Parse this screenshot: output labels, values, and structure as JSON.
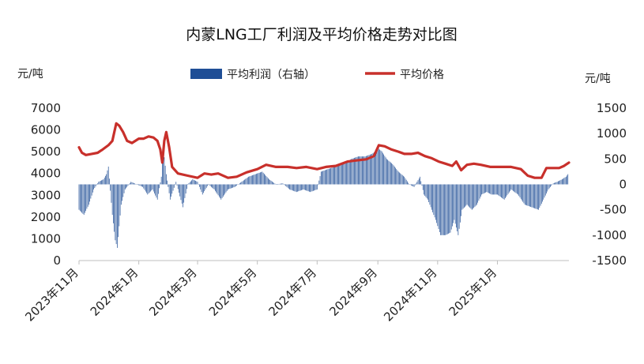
{
  "chart_data": {
    "type": "bar+line",
    "title": "内蒙LNG工厂利润及平均价格走势对比图",
    "left_unit": "元/吨",
    "right_unit": "元/吨",
    "left_axis": {
      "min": 0,
      "max": 7000,
      "ticks": [
        0,
        1000,
        2000,
        3000,
        4000,
        5000,
        6000,
        7000
      ]
    },
    "right_axis": {
      "min": -1500,
      "max": 1500,
      "ticks": [
        -1500,
        -1000,
        -500,
        0,
        500,
        1000,
        1500
      ]
    },
    "x_start": "2023-11-01",
    "x_end": "2025-03-15",
    "x_ticks": [
      {
        "date": "2023-11-01",
        "label": "2023年11月"
      },
      {
        "date": "2024-01-01",
        "label": "2024年1月"
      },
      {
        "date": "2024-03-01",
        "label": "2024年3月"
      },
      {
        "date": "2024-05-01",
        "label": "2024年5月"
      },
      {
        "date": "2024-07-01",
        "label": "2024年7月"
      },
      {
        "date": "2024-09-01",
        "label": "2024年9月"
      },
      {
        "date": "2024-11-01",
        "label": "2024年11月"
      },
      {
        "date": "2025-01-01",
        "label": "2025年1月"
      }
    ],
    "legend": {
      "position": "top",
      "items": [
        "平均利润（右轴）",
        "平均价格"
      ]
    },
    "series": [
      {
        "name": "平均利润（右轴）",
        "kind": "bar",
        "axis": "right",
        "color": "#1F4E96",
        "points": [
          [
            "2023-11-01",
            -500
          ],
          [
            "2023-11-06",
            -600
          ],
          [
            "2023-11-11",
            -400
          ],
          [
            "2023-11-16",
            -100
          ],
          [
            "2023-11-21",
            50
          ],
          [
            "2023-11-26",
            100
          ],
          [
            "2023-11-29",
            200
          ],
          [
            "2023-12-01",
            350
          ],
          [
            "2023-12-05",
            -600
          ],
          [
            "2023-12-08",
            -1100
          ],
          [
            "2023-12-10",
            -1250
          ],
          [
            "2023-12-14",
            -400
          ],
          [
            "2023-12-18",
            -100
          ],
          [
            "2023-12-24",
            50
          ],
          [
            "2023-12-30",
            0
          ],
          [
            "2024-01-05",
            -50
          ],
          [
            "2024-01-10",
            -200
          ],
          [
            "2024-01-15",
            -100
          ],
          [
            "2024-01-20",
            -300
          ],
          [
            "2024-01-24",
            150
          ],
          [
            "2024-01-26",
            700
          ],
          [
            "2024-01-29",
            200
          ],
          [
            "2024-02-02",
            -300
          ],
          [
            "2024-02-08",
            50
          ],
          [
            "2024-02-15",
            -450
          ],
          [
            "2024-02-20",
            0
          ],
          [
            "2024-02-25",
            100
          ],
          [
            "2024-03-01",
            50
          ],
          [
            "2024-03-06",
            -200
          ],
          [
            "2024-03-12",
            0
          ],
          [
            "2024-03-18",
            -100
          ],
          [
            "2024-03-25",
            -300
          ],
          [
            "2024-04-01",
            -100
          ],
          [
            "2024-04-08",
            -50
          ],
          [
            "2024-04-15",
            50
          ],
          [
            "2024-04-22",
            150
          ],
          [
            "2024-04-29",
            200
          ],
          [
            "2024-05-06",
            250
          ],
          [
            "2024-05-13",
            100
          ],
          [
            "2024-05-20",
            0
          ],
          [
            "2024-05-27",
            20
          ],
          [
            "2024-06-03",
            -100
          ],
          [
            "2024-06-10",
            -150
          ],
          [
            "2024-06-17",
            -100
          ],
          [
            "2024-06-24",
            -150
          ],
          [
            "2024-07-01",
            -100
          ],
          [
            "2024-07-05",
            250
          ],
          [
            "2024-07-12",
            300
          ],
          [
            "2024-07-20",
            350
          ],
          [
            "2024-07-28",
            400
          ],
          [
            "2024-08-05",
            500
          ],
          [
            "2024-08-12",
            550
          ],
          [
            "2024-08-19",
            550
          ],
          [
            "2024-08-26",
            600
          ],
          [
            "2024-09-02",
            700
          ],
          [
            "2024-09-05",
            650
          ],
          [
            "2024-09-10",
            500
          ],
          [
            "2024-09-16",
            400
          ],
          [
            "2024-09-22",
            250
          ],
          [
            "2024-09-28",
            150
          ],
          [
            "2024-10-03",
            0
          ],
          [
            "2024-10-08",
            -50
          ],
          [
            "2024-10-14",
            150
          ],
          [
            "2024-10-18",
            -200
          ],
          [
            "2024-10-22",
            -300
          ],
          [
            "2024-10-26",
            -500
          ],
          [
            "2024-10-30",
            -700
          ],
          [
            "2024-11-04",
            -1000
          ],
          [
            "2024-11-09",
            -1000
          ],
          [
            "2024-11-14",
            -950
          ],
          [
            "2024-11-18",
            -700
          ],
          [
            "2024-11-22",
            -1000
          ],
          [
            "2024-11-26",
            -500
          ],
          [
            "2024-12-01",
            -400
          ],
          [
            "2024-12-06",
            -500
          ],
          [
            "2024-12-11",
            -400
          ],
          [
            "2024-12-16",
            -200
          ],
          [
            "2024-12-21",
            -150
          ],
          [
            "2024-12-26",
            -200
          ],
          [
            "2025-01-01",
            -200
          ],
          [
            "2025-01-08",
            -300
          ],
          [
            "2025-01-15",
            -100
          ],
          [
            "2025-01-22",
            -200
          ],
          [
            "2025-01-29",
            -400
          ],
          [
            "2025-02-05",
            -450
          ],
          [
            "2025-02-12",
            -500
          ],
          [
            "2025-02-17",
            -300
          ],
          [
            "2025-02-22",
            -100
          ],
          [
            "2025-02-27",
            20
          ],
          [
            "2025-03-03",
            50
          ],
          [
            "2025-03-08",
            100
          ],
          [
            "2025-03-12",
            150
          ],
          [
            "2025-03-14",
            200
          ]
        ]
      },
      {
        "name": "平均价格",
        "kind": "line",
        "axis": "left",
        "color": "#C8302B",
        "points": [
          [
            "2023-11-01",
            5200
          ],
          [
            "2023-11-04",
            4950
          ],
          [
            "2023-11-08",
            4850
          ],
          [
            "2023-11-14",
            4900
          ],
          [
            "2023-11-20",
            4950
          ],
          [
            "2023-11-25",
            5100
          ],
          [
            "2023-12-01",
            5300
          ],
          [
            "2023-12-05",
            5500
          ],
          [
            "2023-12-09",
            6300
          ],
          [
            "2023-12-12",
            6200
          ],
          [
            "2023-12-16",
            5900
          ],
          [
            "2023-12-20",
            5500
          ],
          [
            "2023-12-25",
            5400
          ],
          [
            "2024-01-01",
            5600
          ],
          [
            "2024-01-06",
            5600
          ],
          [
            "2024-01-11",
            5700
          ],
          [
            "2024-01-16",
            5650
          ],
          [
            "2024-01-20",
            5500
          ],
          [
            "2024-01-23",
            5100
          ],
          [
            "2024-01-25",
            4500
          ],
          [
            "2024-01-27",
            5500
          ],
          [
            "2024-01-29",
            5900
          ],
          [
            "2024-02-01",
            5200
          ],
          [
            "2024-02-04",
            4300
          ],
          [
            "2024-02-10",
            4000
          ],
          [
            "2024-02-20",
            3900
          ],
          [
            "2024-03-01",
            3800
          ],
          [
            "2024-03-08",
            4000
          ],
          [
            "2024-03-15",
            3950
          ],
          [
            "2024-03-22",
            4000
          ],
          [
            "2024-04-01",
            3800
          ],
          [
            "2024-04-10",
            3850
          ],
          [
            "2024-04-20",
            4050
          ],
          [
            "2024-05-01",
            4200
          ],
          [
            "2024-05-10",
            4400
          ],
          [
            "2024-05-20",
            4300
          ],
          [
            "2024-06-01",
            4300
          ],
          [
            "2024-06-10",
            4250
          ],
          [
            "2024-06-20",
            4300
          ],
          [
            "2024-07-01",
            4200
          ],
          [
            "2024-07-10",
            4300
          ],
          [
            "2024-07-20",
            4350
          ],
          [
            "2024-08-01",
            4550
          ],
          [
            "2024-08-10",
            4600
          ],
          [
            "2024-08-20",
            4650
          ],
          [
            "2024-08-28",
            4800
          ],
          [
            "2024-09-02",
            5300
          ],
          [
            "2024-09-08",
            5250
          ],
          [
            "2024-09-15",
            5100
          ],
          [
            "2024-09-22",
            5000
          ],
          [
            "2024-09-28",
            4900
          ],
          [
            "2024-10-05",
            4900
          ],
          [
            "2024-10-12",
            4950
          ],
          [
            "2024-10-19",
            4800
          ],
          [
            "2024-10-26",
            4700
          ],
          [
            "2024-11-02",
            4550
          ],
          [
            "2024-11-09",
            4450
          ],
          [
            "2024-11-16",
            4350
          ],
          [
            "2024-11-20",
            4550
          ],
          [
            "2024-11-25",
            4150
          ],
          [
            "2024-12-01",
            4400
          ],
          [
            "2024-12-08",
            4450
          ],
          [
            "2024-12-15",
            4400
          ],
          [
            "2024-12-25",
            4300
          ],
          [
            "2025-01-05",
            4300
          ],
          [
            "2025-01-15",
            4300
          ],
          [
            "2025-01-25",
            4200
          ],
          [
            "2025-02-01",
            3900
          ],
          [
            "2025-02-08",
            3800
          ],
          [
            "2025-02-15",
            3800
          ],
          [
            "2025-02-20",
            4250
          ],
          [
            "2025-02-26",
            4250
          ],
          [
            "2025-03-05",
            4250
          ],
          [
            "2025-03-10",
            4350
          ],
          [
            "2025-03-15",
            4500
          ]
        ]
      }
    ]
  }
}
